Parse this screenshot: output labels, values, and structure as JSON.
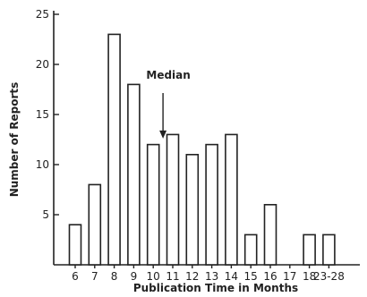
{
  "chart_data": {
    "type": "bar",
    "categories": [
      "6",
      "7",
      "8",
      "9",
      "10",
      "11",
      "12",
      "13",
      "14",
      "15",
      "16",
      "17",
      "18",
      "23-28"
    ],
    "values": [
      4,
      8,
      23,
      18,
      12,
      13,
      11,
      12,
      13,
      3,
      6,
      0,
      3,
      3
    ],
    "xlabel": "Publication Time in Months",
    "ylabel": "Number of Reports",
    "ylim": [
      0,
      25
    ],
    "yticks": [
      5,
      10,
      15,
      20,
      25
    ],
    "grid": false,
    "annotations": [
      {
        "text": "Median",
        "category": "10",
        "offset": 0.5,
        "value": 12.6,
        "arrow": true
      }
    ],
    "colors": {
      "bar_fill": "#ffffff",
      "bar_stroke": "#222222"
    }
  }
}
